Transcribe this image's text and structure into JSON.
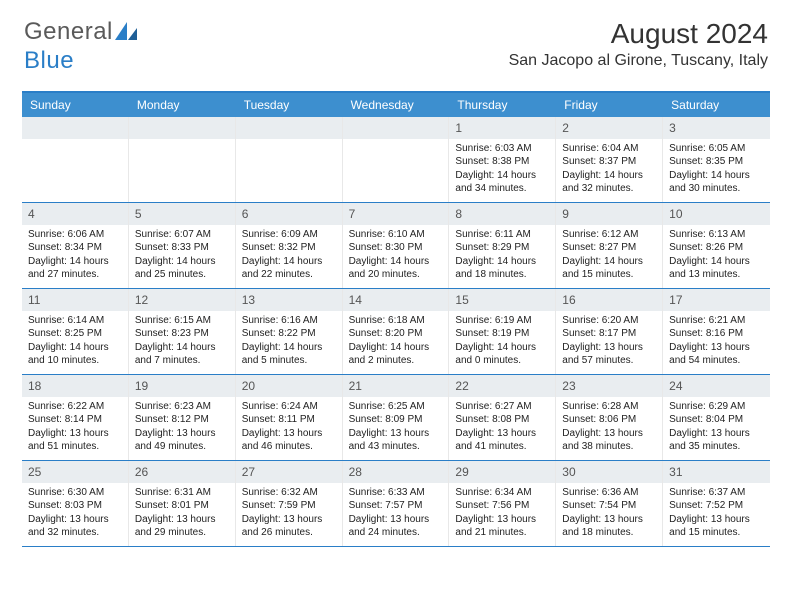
{
  "logo": {
    "text_general": "General",
    "text_blue": "Blue"
  },
  "header": {
    "month_title": "August 2024",
    "location": "San Jacopo al Girone, Tuscany, Italy"
  },
  "colors": {
    "accent": "#2a7ec7",
    "header_bg": "#3d8fcf",
    "daynum_bg": "#e9edf0",
    "text_dark": "#333333",
    "text_body": "#222222",
    "logo_gray": "#5a5a5a"
  },
  "day_names": [
    "Sunday",
    "Monday",
    "Tuesday",
    "Wednesday",
    "Thursday",
    "Friday",
    "Saturday"
  ],
  "calendar": {
    "type": "calendar-grid",
    "rows": 5,
    "cols": 7,
    "first_weekday_index": 4,
    "days": [
      {
        "n": 1,
        "sunrise": "6:03 AM",
        "sunset": "8:38 PM",
        "daylight": "14 hours and 34 minutes."
      },
      {
        "n": 2,
        "sunrise": "6:04 AM",
        "sunset": "8:37 PM",
        "daylight": "14 hours and 32 minutes."
      },
      {
        "n": 3,
        "sunrise": "6:05 AM",
        "sunset": "8:35 PM",
        "daylight": "14 hours and 30 minutes."
      },
      {
        "n": 4,
        "sunrise": "6:06 AM",
        "sunset": "8:34 PM",
        "daylight": "14 hours and 27 minutes."
      },
      {
        "n": 5,
        "sunrise": "6:07 AM",
        "sunset": "8:33 PM",
        "daylight": "14 hours and 25 minutes."
      },
      {
        "n": 6,
        "sunrise": "6:09 AM",
        "sunset": "8:32 PM",
        "daylight": "14 hours and 22 minutes."
      },
      {
        "n": 7,
        "sunrise": "6:10 AM",
        "sunset": "8:30 PM",
        "daylight": "14 hours and 20 minutes."
      },
      {
        "n": 8,
        "sunrise": "6:11 AM",
        "sunset": "8:29 PM",
        "daylight": "14 hours and 18 minutes."
      },
      {
        "n": 9,
        "sunrise": "6:12 AM",
        "sunset": "8:27 PM",
        "daylight": "14 hours and 15 minutes."
      },
      {
        "n": 10,
        "sunrise": "6:13 AM",
        "sunset": "8:26 PM",
        "daylight": "14 hours and 13 minutes."
      },
      {
        "n": 11,
        "sunrise": "6:14 AM",
        "sunset": "8:25 PM",
        "daylight": "14 hours and 10 minutes."
      },
      {
        "n": 12,
        "sunrise": "6:15 AM",
        "sunset": "8:23 PM",
        "daylight": "14 hours and 7 minutes."
      },
      {
        "n": 13,
        "sunrise": "6:16 AM",
        "sunset": "8:22 PM",
        "daylight": "14 hours and 5 minutes."
      },
      {
        "n": 14,
        "sunrise": "6:18 AM",
        "sunset": "8:20 PM",
        "daylight": "14 hours and 2 minutes."
      },
      {
        "n": 15,
        "sunrise": "6:19 AM",
        "sunset": "8:19 PM",
        "daylight": "14 hours and 0 minutes."
      },
      {
        "n": 16,
        "sunrise": "6:20 AM",
        "sunset": "8:17 PM",
        "daylight": "13 hours and 57 minutes."
      },
      {
        "n": 17,
        "sunrise": "6:21 AM",
        "sunset": "8:16 PM",
        "daylight": "13 hours and 54 minutes."
      },
      {
        "n": 18,
        "sunrise": "6:22 AM",
        "sunset": "8:14 PM",
        "daylight": "13 hours and 51 minutes."
      },
      {
        "n": 19,
        "sunrise": "6:23 AM",
        "sunset": "8:12 PM",
        "daylight": "13 hours and 49 minutes."
      },
      {
        "n": 20,
        "sunrise": "6:24 AM",
        "sunset": "8:11 PM",
        "daylight": "13 hours and 46 minutes."
      },
      {
        "n": 21,
        "sunrise": "6:25 AM",
        "sunset": "8:09 PM",
        "daylight": "13 hours and 43 minutes."
      },
      {
        "n": 22,
        "sunrise": "6:27 AM",
        "sunset": "8:08 PM",
        "daylight": "13 hours and 41 minutes."
      },
      {
        "n": 23,
        "sunrise": "6:28 AM",
        "sunset": "8:06 PM",
        "daylight": "13 hours and 38 minutes."
      },
      {
        "n": 24,
        "sunrise": "6:29 AM",
        "sunset": "8:04 PM",
        "daylight": "13 hours and 35 minutes."
      },
      {
        "n": 25,
        "sunrise": "6:30 AM",
        "sunset": "8:03 PM",
        "daylight": "13 hours and 32 minutes."
      },
      {
        "n": 26,
        "sunrise": "6:31 AM",
        "sunset": "8:01 PM",
        "daylight": "13 hours and 29 minutes."
      },
      {
        "n": 27,
        "sunrise": "6:32 AM",
        "sunset": "7:59 PM",
        "daylight": "13 hours and 26 minutes."
      },
      {
        "n": 28,
        "sunrise": "6:33 AM",
        "sunset": "7:57 PM",
        "daylight": "13 hours and 24 minutes."
      },
      {
        "n": 29,
        "sunrise": "6:34 AM",
        "sunset": "7:56 PM",
        "daylight": "13 hours and 21 minutes."
      },
      {
        "n": 30,
        "sunrise": "6:36 AM",
        "sunset": "7:54 PM",
        "daylight": "13 hours and 18 minutes."
      },
      {
        "n": 31,
        "sunrise": "6:37 AM",
        "sunset": "7:52 PM",
        "daylight": "13 hours and 15 minutes."
      }
    ]
  },
  "labels": {
    "sunrise_prefix": "Sunrise: ",
    "sunset_prefix": "Sunset: ",
    "daylight_prefix": "Daylight: "
  }
}
